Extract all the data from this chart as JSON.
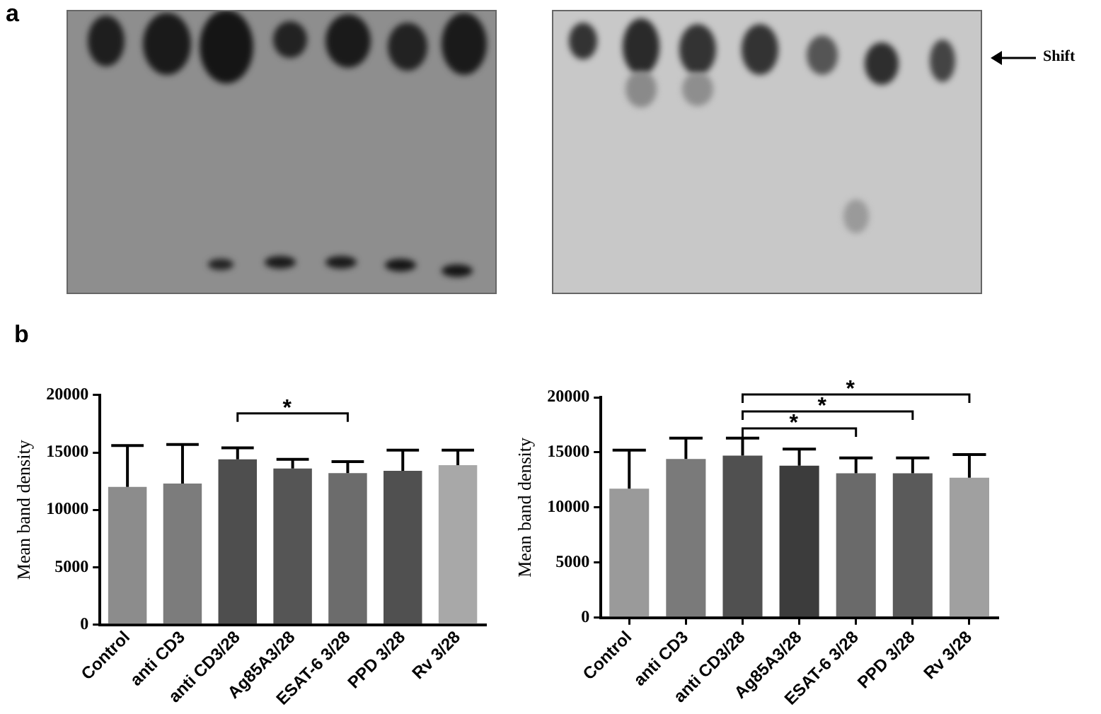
{
  "chart_data": [
    {
      "type": "other",
      "title": "a",
      "annotations": [
        "Shift"
      ]
    },
    {
      "type": "bar",
      "title": "b",
      "categories": [
        "Control",
        "anti CD3",
        "anti CD3/28",
        "Ag85A3/28",
        "ESAT-6 3/28",
        "PPD 3/28",
        "Rv 3/28"
      ],
      "values": [
        12000,
        12300,
        14400,
        13600,
        13200,
        13400,
        13900
      ],
      "colors": [
        "#8c8c8c",
        "#7c7c7c",
        "#4e4e4e",
        "#555555",
        "#6c6c6c",
        "#505050",
        "#a8a8a8"
      ],
      "errors": [
        [
          12000,
          15600
        ],
        [
          12300,
          15700
        ],
        [
          14400,
          15400
        ],
        [
          13600,
          14400
        ],
        [
          13200,
          14200
        ],
        [
          13400,
          15200
        ],
        [
          13900,
          15200
        ]
      ],
      "ylabel": "Mean band density",
      "ylim": [
        0,
        20000
      ],
      "yticks": [
        0,
        5000,
        10000,
        15000,
        20000
      ],
      "annotations": [
        "*"
      ]
    },
    {
      "type": "bar",
      "categories": [
        "Control",
        "anti CD3",
        "anti CD3/28",
        "Ag85A3/28",
        "ESAT-6 3/28",
        "PPD 3/28",
        "Rv 3/28"
      ],
      "values": [
        11700,
        14400,
        14700,
        13800,
        13100,
        13100,
        12700
      ],
      "colors": [
        "#9a9a9a",
        "#7a7a7a",
        "#505050",
        "#3c3c3c",
        "#6a6a6a",
        "#5a5a5a",
        "#a0a0a0"
      ],
      "errors": [
        [
          11700,
          15200
        ],
        [
          14400,
          16300
        ],
        [
          14700,
          16300
        ],
        [
          13800,
          15300
        ],
        [
          13100,
          14500
        ],
        [
          13100,
          14500
        ],
        [
          12700,
          14800
        ]
      ],
      "ylabel": "Mean band density",
      "ylim": [
        0,
        20000
      ],
      "yticks": [
        0,
        5000,
        10000,
        15000,
        20000
      ],
      "annotations": [
        "*",
        "*",
        "*"
      ]
    }
  ]
}
